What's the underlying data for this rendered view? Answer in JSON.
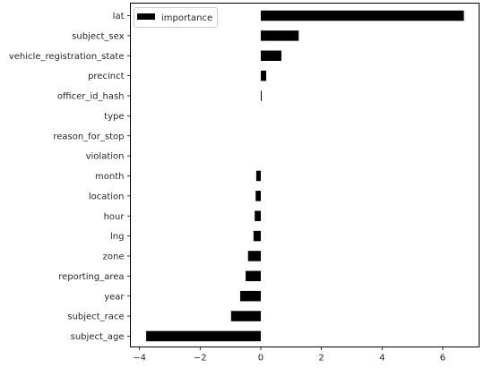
{
  "chart_data": {
    "type": "bar",
    "orientation": "horizontal",
    "title": "",
    "xlabel": "",
    "ylabel": "",
    "xlim": [
      -4.3,
      7.2
    ],
    "xticks": [
      -4,
      -2,
      0,
      2,
      4,
      6
    ],
    "xtick_labels": [
      "−4",
      "−2",
      "0",
      "2",
      "4",
      "6"
    ],
    "grid": false,
    "legend": {
      "position": "top-left",
      "entries": [
        "importance"
      ]
    },
    "bar_color": "#000000",
    "categories": [
      "lat",
      "subject_sex",
      "vehicle_registration_state",
      "precinct",
      "officer_id_hash",
      "type",
      "reason_for_stop",
      "violation",
      "month",
      "location",
      "hour",
      "lng",
      "zone",
      "reporting_area",
      "year",
      "subject_race",
      "subject_age"
    ],
    "series": [
      {
        "name": "importance",
        "values": [
          6.7,
          1.25,
          0.68,
          0.18,
          0.02,
          0.0,
          0.0,
          0.0,
          -0.15,
          -0.17,
          -0.2,
          -0.24,
          -0.42,
          -0.5,
          -0.68,
          -0.98,
          -3.78
        ]
      }
    ]
  }
}
